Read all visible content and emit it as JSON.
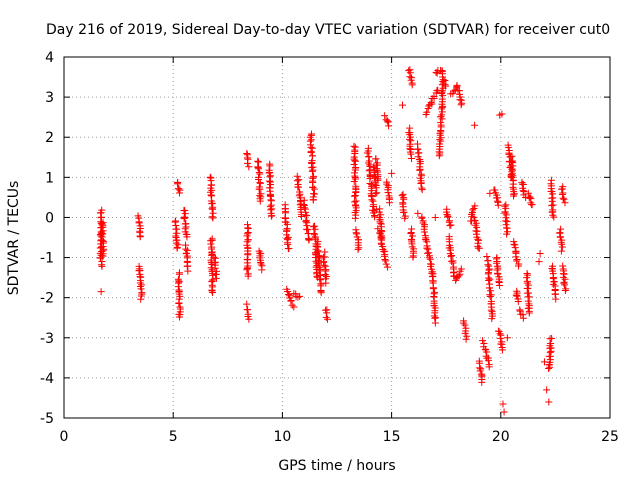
{
  "chart_data": {
    "type": "scatter",
    "title": "Day 216 of 2019, Sidereal Day-to-day VTEC variation (SDTVAR) for receiver cut0",
    "xlabel": "GPS time / hours",
    "ylabel": "SDTVAR / TECUs",
    "xlim": [
      0,
      25
    ],
    "ylim": [
      -5,
      4
    ],
    "xticks": [
      "0",
      "5",
      "10",
      "15",
      "20",
      "25"
    ],
    "yticks": [
      "-5",
      "-4",
      "-3",
      "-2",
      "-1",
      "0",
      "1",
      "2",
      "3",
      "4"
    ],
    "grid": true,
    "marker": "+",
    "marker_color": "#ff0000",
    "series": [
      {
        "name": "SDTVAR",
        "segments": [
          [
            1.7,
            0.2,
            1.7,
            -1.2
          ],
          [
            1.75,
            -0.1,
            1.8,
            -1.0
          ],
          [
            3.4,
            0.0,
            3.5,
            -0.5
          ],
          [
            3.45,
            -1.2,
            3.55,
            -2.0
          ],
          [
            5.1,
            -0.1,
            5.2,
            -0.8
          ],
          [
            5.2,
            0.9,
            5.3,
            0.6
          ],
          [
            5.25,
            -1.4,
            5.3,
            -2.5
          ],
          [
            5.5,
            0.2,
            5.6,
            -0.5
          ],
          [
            5.6,
            -0.7,
            5.7,
            -1.3
          ],
          [
            6.7,
            1.0,
            6.8,
            0.0
          ],
          [
            6.75,
            -0.5,
            6.8,
            -1.9
          ],
          [
            6.9,
            -1.0,
            7.0,
            -1.5
          ],
          [
            8.4,
            -0.2,
            8.4,
            -1.5
          ],
          [
            8.4,
            1.6,
            8.45,
            1.3
          ],
          [
            8.4,
            -2.2,
            8.45,
            -2.5
          ],
          [
            8.9,
            1.4,
            9.0,
            0.4
          ],
          [
            8.95,
            -0.8,
            9.05,
            -1.3
          ],
          [
            9.4,
            1.3,
            9.5,
            0.0
          ],
          [
            10.1,
            0.3,
            10.3,
            -0.8
          ],
          [
            10.2,
            -1.8,
            10.5,
            -2.2
          ],
          [
            10.5,
            -1.9,
            10.8,
            -2.0
          ],
          [
            10.7,
            1.0,
            10.9,
            0.0
          ],
          [
            11.0,
            0.4,
            11.2,
            -0.6
          ],
          [
            11.3,
            2.1,
            11.45,
            0.4
          ],
          [
            11.45,
            -0.2,
            11.6,
            -1.5
          ],
          [
            11.6,
            -0.6,
            11.8,
            -1.9
          ],
          [
            11.9,
            -0.9,
            12.0,
            -1.6
          ],
          [
            12.0,
            -2.3,
            12.05,
            -2.5
          ],
          [
            13.3,
            1.8,
            13.35,
            0.0
          ],
          [
            13.4,
            -0.3,
            13.5,
            -0.8
          ],
          [
            13.9,
            1.7,
            14.2,
            0.0
          ],
          [
            14.2,
            1.3,
            14.3,
            0.6
          ],
          [
            14.3,
            1.5,
            14.4,
            0.9
          ],
          [
            14.4,
            -0.3,
            14.8,
            -1.2
          ],
          [
            14.45,
            0.2,
            14.55,
            -0.5
          ],
          [
            14.7,
            2.5,
            14.85,
            2.3
          ],
          [
            14.8,
            0.9,
            14.9,
            0.4
          ],
          [
            15.8,
            3.7,
            15.95,
            3.3
          ],
          [
            15.8,
            2.2,
            15.9,
            1.5
          ],
          [
            15.9,
            -0.3,
            16.0,
            -1.0
          ],
          [
            15.5,
            0.6,
            15.6,
            0.0
          ],
          [
            16.2,
            1.8,
            16.4,
            0.7
          ],
          [
            16.4,
            0.0,
            16.9,
            -1.5
          ],
          [
            16.9,
            -1.5,
            17.0,
            -2.6
          ],
          [
            16.6,
            2.6,
            17.1,
            3.2
          ],
          [
            17.0,
            3.6,
            17.3,
            3.7
          ],
          [
            17.3,
            3.6,
            17.5,
            3.3
          ],
          [
            17.2,
            1.5,
            17.35,
            3.4
          ],
          [
            17.5,
            0.2,
            17.7,
            -0.2
          ],
          [
            17.6,
            -0.5,
            17.9,
            -1.5
          ],
          [
            17.7,
            3.1,
            18.0,
            3.2
          ],
          [
            18.0,
            3.3,
            18.2,
            2.8
          ],
          [
            17.9,
            -1.6,
            18.2,
            -1.3
          ],
          [
            18.3,
            -2.6,
            18.45,
            -3.0
          ],
          [
            18.6,
            -0.1,
            18.8,
            0.3
          ],
          [
            18.8,
            0.0,
            19.0,
            -0.8
          ],
          [
            19.0,
            -3.6,
            19.15,
            -4.1
          ],
          [
            19.2,
            -3.1,
            19.5,
            -3.7
          ],
          [
            19.4,
            -1.0,
            19.6,
            -2.5
          ],
          [
            19.7,
            0.7,
            19.9,
            0.3
          ],
          [
            19.8,
            -1.0,
            19.95,
            -1.7
          ],
          [
            19.9,
            -2.8,
            20.1,
            -3.3
          ],
          [
            20.2,
            0.3,
            20.3,
            -0.4
          ],
          [
            20.35,
            1.8,
            20.5,
            1.0
          ],
          [
            20.5,
            1.5,
            20.6,
            0.5
          ],
          [
            20.6,
            -0.6,
            20.8,
            -1.2
          ],
          [
            20.7,
            -1.8,
            20.8,
            -2.1
          ],
          [
            20.9,
            -2.3,
            21.0,
            -2.5
          ],
          [
            21.0,
            0.9,
            21.1,
            0.5
          ],
          [
            21.2,
            -1.4,
            21.3,
            -2.4
          ],
          [
            21.3,
            0.6,
            21.4,
            0.3
          ],
          [
            22.2,
            -3.8,
            22.3,
            -3.0
          ],
          [
            22.3,
            0.9,
            22.4,
            0.0
          ],
          [
            22.35,
            -1.2,
            22.5,
            -2.0
          ],
          [
            22.7,
            -0.3,
            22.8,
            -0.8
          ],
          [
            22.8,
            0.8,
            22.9,
            0.4
          ],
          [
            22.85,
            -1.2,
            22.95,
            -1.8
          ]
        ],
        "scattered_points": [
          [
            1.7,
            -1.85
          ],
          [
            14.3,
            0.2
          ],
          [
            15.5,
            2.8
          ],
          [
            18.8,
            2.3
          ],
          [
            19.95,
            2.55
          ],
          [
            20.05,
            2.58
          ],
          [
            20.1,
            -4.65
          ],
          [
            20.15,
            -4.85
          ],
          [
            20.3,
            -3.0
          ],
          [
            21.75,
            -1.1
          ],
          [
            22.1,
            -4.3
          ],
          [
            22.2,
            -4.6
          ],
          [
            22.0,
            -3.6
          ],
          [
            21.8,
            -0.9
          ],
          [
            19.5,
            0.6
          ],
          [
            17.0,
            0.0
          ],
          [
            16.2,
            0.1
          ],
          [
            15.0,
            1.1
          ]
        ]
      }
    ]
  }
}
